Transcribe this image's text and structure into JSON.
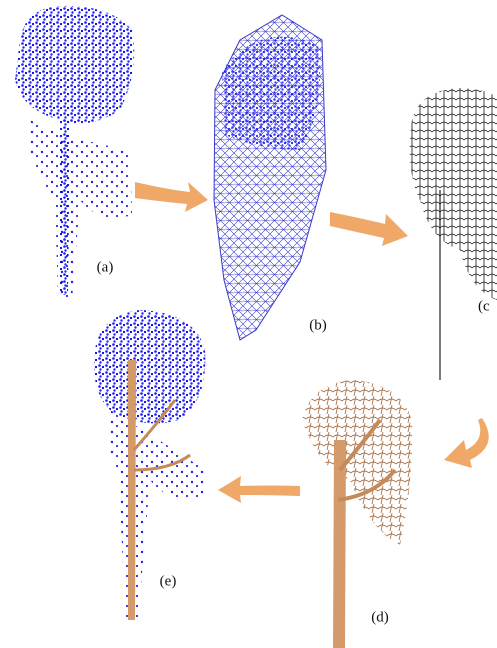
{
  "panels": [
    {
      "label": "(a)"
    },
    {
      "label": "(b)"
    },
    {
      "label": "(c"
    },
    {
      "label": "(d)"
    },
    {
      "label": "(e)"
    }
  ]
}
